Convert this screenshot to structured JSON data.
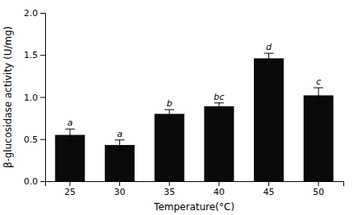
{
  "chart_data": {
    "type": "bar",
    "categories": [
      "25",
      "30",
      "35",
      "40",
      "45",
      "50"
    ],
    "values": [
      0.55,
      0.43,
      0.8,
      0.89,
      1.46,
      1.02
    ],
    "errors": [
      0.07,
      0.06,
      0.05,
      0.04,
      0.06,
      0.09
    ],
    "annotations": [
      "a",
      "a",
      "b",
      "bc",
      "d",
      "c"
    ],
    "color": "#0a0a0a",
    "xlabel": "Temperature(°C)",
    "ylabel": "β-glucosidase activity (U/mg)",
    "ylim": [
      0.0,
      2.0
    ],
    "yticks": [
      {
        "value": 0.0,
        "label": "0.0"
      },
      0.5,
      {
        "value": 1.0,
        "label": "1.0"
      },
      1.5,
      {
        "value": 2.0,
        "label": "2.0"
      }
    ],
    "grid": false
  }
}
